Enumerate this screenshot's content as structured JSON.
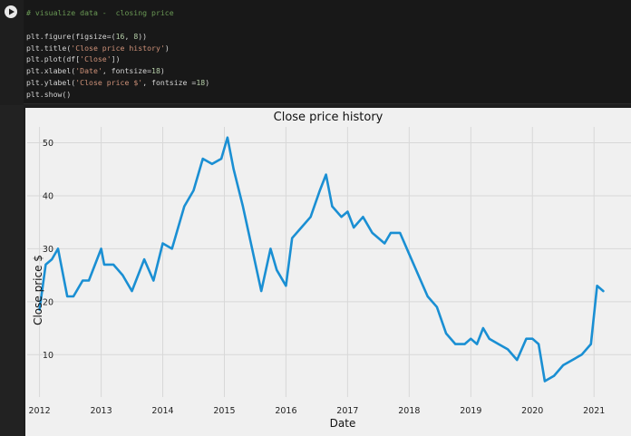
{
  "cell": {
    "run_button": "run",
    "code_lines": [
      [
        {
          "t": "# visualize data -  closing price",
          "c": "cm"
        }
      ],
      [
        {
          "t": "",
          "c": ""
        }
      ],
      [
        {
          "t": "plt.figure(figsize=(",
          "c": ""
        },
        {
          "t": "16",
          "c": "num"
        },
        {
          "t": ", ",
          "c": ""
        },
        {
          "t": "8",
          "c": "num"
        },
        {
          "t": "))",
          "c": ""
        }
      ],
      [
        {
          "t": "plt.title(",
          "c": ""
        },
        {
          "t": "'Close price history'",
          "c": "str"
        },
        {
          "t": ")",
          "c": ""
        }
      ],
      [
        {
          "t": "plt.plot(df[",
          "c": ""
        },
        {
          "t": "'Close'",
          "c": "str"
        },
        {
          "t": "])",
          "c": ""
        }
      ],
      [
        {
          "t": "plt.xlabel(",
          "c": ""
        },
        {
          "t": "'Date'",
          "c": "str"
        },
        {
          "t": ", fontsize=",
          "c": ""
        },
        {
          "t": "18",
          "c": "num"
        },
        {
          "t": ")",
          "c": ""
        }
      ],
      [
        {
          "t": "plt.ylabel(",
          "c": ""
        },
        {
          "t": "'Close price $'",
          "c": "str"
        },
        {
          "t": ", fontsize =",
          "c": ""
        },
        {
          "t": "18",
          "c": "num"
        },
        {
          "t": ")",
          "c": ""
        }
      ],
      [
        {
          "t": "plt.show()",
          "c": ""
        }
      ]
    ]
  },
  "colors": {
    "line": "#1a8fd3",
    "grid": "#d8d8d8",
    "plot_bg": "#f0f0f0"
  },
  "chart_data": {
    "type": "line",
    "title": "Close price history",
    "xlabel": "Date",
    "ylabel": "Close price $",
    "xlim": [
      2011.8,
      2021.6
    ],
    "ylim": [
      2,
      53
    ],
    "xticks": [
      2012,
      2013,
      2014,
      2015,
      2016,
      2017,
      2018,
      2019,
      2020,
      2021
    ],
    "yticks": [
      10,
      20,
      30,
      40,
      50
    ],
    "grid": true,
    "series": [
      {
        "x": [
          2012.0,
          2012.1,
          2012.2,
          2012.3,
          2012.45,
          2012.55,
          2012.7,
          2012.8,
          2013.0,
          2013.05,
          2013.2,
          2013.35,
          2013.5,
          2013.7,
          2013.85,
          2014.0,
          2014.15,
          2014.2,
          2014.35,
          2014.5,
          2014.65,
          2014.8,
          2014.95,
          2015.05,
          2015.15,
          2015.3,
          2015.45,
          2015.6,
          2015.75,
          2015.85,
          2016.0,
          2016.1,
          2016.25,
          2016.4,
          2016.55,
          2016.65,
          2016.75,
          2016.9,
          2017.0,
          2017.1,
          2017.25,
          2017.4,
          2017.6,
          2017.7,
          2017.85,
          2018.0,
          2018.15,
          2018.3,
          2018.45,
          2018.6,
          2018.75,
          2018.9,
          2019.0,
          2019.1,
          2019.2,
          2019.3,
          2019.45,
          2019.6,
          2019.75,
          2019.9,
          2020.0,
          2020.1,
          2020.2,
          2020.35,
          2020.5,
          2020.65,
          2020.8,
          2020.95,
          2021.05,
          2021.15
        ],
        "y": [
          18.5,
          27,
          28,
          30,
          21,
          21,
          24,
          24,
          30,
          27,
          27,
          25,
          22,
          28,
          24,
          31,
          30,
          32,
          38,
          41,
          47,
          46,
          47,
          51,
          45,
          38,
          30,
          22,
          30,
          26,
          23,
          32,
          34,
          36,
          41,
          44,
          38,
          36,
          37,
          34,
          36,
          33,
          31,
          33,
          33,
          29,
          25,
          21,
          19,
          14,
          12,
          12,
          13,
          12,
          15,
          13,
          12,
          11,
          9,
          13,
          13,
          12,
          5,
          6,
          8,
          9,
          10,
          12,
          23,
          22
        ]
      }
    ]
  }
}
